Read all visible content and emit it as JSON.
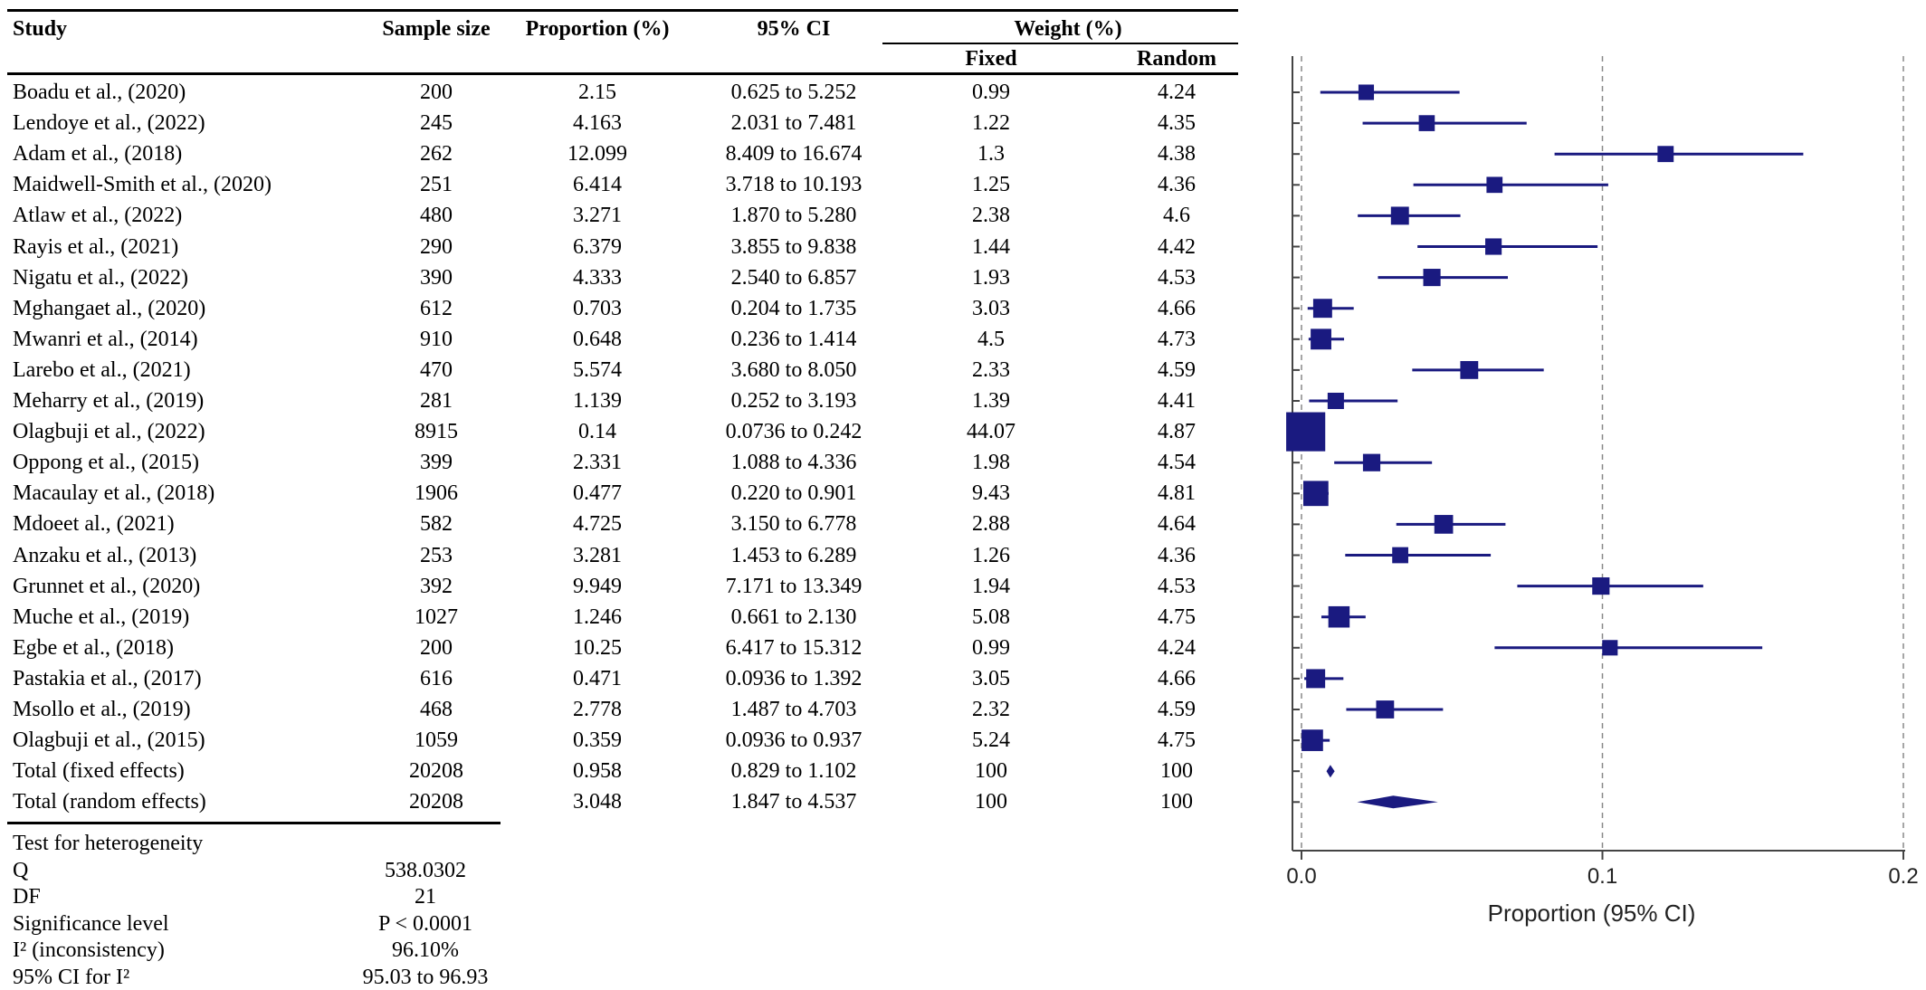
{
  "table": {
    "headers": {
      "study": "Study",
      "sample_size": "Sample size",
      "proportion": "Proportion (%)",
      "ci": "95% CI",
      "weight": "Weight (%)",
      "fixed": "Fixed",
      "random": "Random"
    },
    "rows": [
      {
        "study": "Boadu et al., (2020)",
        "n": "200",
        "p": "2.15",
        "ci": "0.625 to 5.252",
        "fixed": "0.99",
        "random": "4.24"
      },
      {
        "study": "Lendoye et al., (2022)",
        "n": "245",
        "p": "4.163",
        "ci": "2.031 to 7.481",
        "fixed": "1.22",
        "random": "4.35"
      },
      {
        "study": "Adam et al., (2018)",
        "n": "262",
        "p": "12.099",
        "ci": "8.409 to 16.674",
        "fixed": "1.3",
        "random": "4.38"
      },
      {
        "study": "Maidwell-Smith et al., (2020)",
        "n": "251",
        "p": "6.414",
        "ci": "3.718 to 10.193",
        "fixed": "1.25",
        "random": "4.36"
      },
      {
        "study": "Atlaw et al., (2022)",
        "n": "480",
        "p": "3.271",
        "ci": "1.870 to 5.280",
        "fixed": "2.38",
        "random": "4.6"
      },
      {
        "study": "Rayis et al., (2021)",
        "n": "290",
        "p": "6.379",
        "ci": "3.855 to 9.838",
        "fixed": "1.44",
        "random": "4.42"
      },
      {
        "study": "Nigatu et al., (2022)",
        "n": "390",
        "p": "4.333",
        "ci": "2.540 to 6.857",
        "fixed": "1.93",
        "random": "4.53"
      },
      {
        "study": "Mghangaet al., (2020)",
        "n": "612",
        "p": "0.703",
        "ci": "0.204 to 1.735",
        "fixed": "3.03",
        "random": "4.66"
      },
      {
        "study": "Mwanri et al., (2014)",
        "n": "910",
        "p": "0.648",
        "ci": "0.236 to 1.414",
        "fixed": "4.5",
        "random": "4.73"
      },
      {
        "study": "Larebo et al., (2021)",
        "n": "470",
        "p": "5.574",
        "ci": "3.680 to 8.050",
        "fixed": "2.33",
        "random": "4.59"
      },
      {
        "study": "Meharry et al., (2019)",
        "n": "281",
        "p": "1.139",
        "ci": "0.252 to 3.193",
        "fixed": "1.39",
        "random": "4.41"
      },
      {
        "study": "Olagbuji et al., (2022)",
        "n": "8915",
        "p": "0.14",
        "ci": "0.0736 to 0.242",
        "fixed": "44.07",
        "random": "4.87"
      },
      {
        "study": "Oppong et al., (2015)",
        "n": "399",
        "p": "2.331",
        "ci": "1.088 to 4.336",
        "fixed": "1.98",
        "random": "4.54"
      },
      {
        "study": "Macaulay et al., (2018)",
        "n": "1906",
        "p": "0.477",
        "ci": "0.220 to 0.901",
        "fixed": "9.43",
        "random": "4.81"
      },
      {
        "study": "Mdoeet al., (2021)",
        "n": "582",
        "p": "4.725",
        "ci": "3.150 to 6.778",
        "fixed": "2.88",
        "random": "4.64"
      },
      {
        "study": "Anzaku et al., (2013)",
        "n": "253",
        "p": "3.281",
        "ci": "1.453 to 6.289",
        "fixed": "1.26",
        "random": "4.36"
      },
      {
        "study": "Grunnet et al., (2020)",
        "n": "392",
        "p": "9.949",
        "ci": "7.171 to 13.349",
        "fixed": "1.94",
        "random": "4.53"
      },
      {
        "study": "Muche et al., (2019)",
        "n": "1027",
        "p": "1.246",
        "ci": "0.661 to 2.130",
        "fixed": "5.08",
        "random": "4.75"
      },
      {
        "study": "Egbe et al., (2018)",
        "n": "200",
        "p": "10.25",
        "ci": "6.417 to 15.312",
        "fixed": "0.99",
        "random": "4.24"
      },
      {
        "study": "Pastakia et al., (2017)",
        "n": "616",
        "p": "0.471",
        "ci": "0.0936 to 1.392",
        "fixed": "3.05",
        "random": "4.66"
      },
      {
        "study": "Msollo et al., (2019)",
        "n": "468",
        "p": "2.778",
        "ci": "1.487 to 4.703",
        "fixed": "2.32",
        "random": "4.59"
      },
      {
        "study": "Olagbuji et al., (2015)",
        "n": "1059",
        "p": "0.359",
        "ci": "0.0936 to 0.937",
        "fixed": "5.24",
        "random": "4.75"
      },
      {
        "study": "Total (fixed effects)",
        "n": "20208",
        "p": "0.958",
        "ci": "0.829 to 1.102",
        "fixed": "100",
        "random": "100"
      },
      {
        "study": "Total (random effects)",
        "n": "20208",
        "p": "3.048",
        "ci": "1.847 to 4.537",
        "fixed": "100",
        "random": "100"
      }
    ]
  },
  "heterogeneity": {
    "title": "Test for heterogeneity",
    "rows": [
      {
        "label": "Q",
        "value": "538.0302"
      },
      {
        "label": "DF",
        "value": "21"
      },
      {
        "label": "Significance level",
        "value": "P < 0.0001"
      },
      {
        "label": "I² (inconsistency)",
        "value": "96.10%"
      },
      {
        "label": "95% CI for I²",
        "value": "95.03 to 96.93"
      }
    ]
  },
  "chart_data": {
    "type": "forest",
    "xlabel": "Proportion (95% CI)",
    "xlim": [
      0,
      0.2
    ],
    "xticks": [
      "0.0",
      "0.1",
      "0.2"
    ],
    "reference_lines": [
      0,
      0.1,
      0.2
    ],
    "color": "#1a1a80",
    "studies": [
      {
        "est": 0.0215,
        "lo": 0.00625,
        "hi": 0.05252,
        "weight": 0.99
      },
      {
        "est": 0.04163,
        "lo": 0.02031,
        "hi": 0.07481,
        "weight": 1.22
      },
      {
        "est": 0.12099,
        "lo": 0.08409,
        "hi": 0.16674,
        "weight": 1.3
      },
      {
        "est": 0.06414,
        "lo": 0.03718,
        "hi": 0.10193,
        "weight": 1.25
      },
      {
        "est": 0.03271,
        "lo": 0.0187,
        "hi": 0.0528,
        "weight": 2.38
      },
      {
        "est": 0.06379,
        "lo": 0.03855,
        "hi": 0.09838,
        "weight": 1.44
      },
      {
        "est": 0.04333,
        "lo": 0.0254,
        "hi": 0.06857,
        "weight": 1.93
      },
      {
        "est": 0.00703,
        "lo": 0.00204,
        "hi": 0.01735,
        "weight": 3.03
      },
      {
        "est": 0.00648,
        "lo": 0.00236,
        "hi": 0.01414,
        "weight": 4.5
      },
      {
        "est": 0.05574,
        "lo": 0.0368,
        "hi": 0.0805,
        "weight": 2.33
      },
      {
        "est": 0.01139,
        "lo": 0.00252,
        "hi": 0.03193,
        "weight": 1.39
      },
      {
        "est": 0.0014,
        "lo": 0.000736,
        "hi": 0.00242,
        "weight": 44.07
      },
      {
        "est": 0.02331,
        "lo": 0.01088,
        "hi": 0.04336,
        "weight": 1.98
      },
      {
        "est": 0.00477,
        "lo": 0.0022,
        "hi": 0.00901,
        "weight": 9.43
      },
      {
        "est": 0.04725,
        "lo": 0.0315,
        "hi": 0.06778,
        "weight": 2.88
      },
      {
        "est": 0.03281,
        "lo": 0.01453,
        "hi": 0.06289,
        "weight": 1.26
      },
      {
        "est": 0.09949,
        "lo": 0.07171,
        "hi": 0.13349,
        "weight": 1.94
      },
      {
        "est": 0.01246,
        "lo": 0.00661,
        "hi": 0.0213,
        "weight": 5.08
      },
      {
        "est": 0.1025,
        "lo": 0.06417,
        "hi": 0.15312,
        "weight": 0.99
      },
      {
        "est": 0.00471,
        "lo": 0.000936,
        "hi": 0.01392,
        "weight": 3.05
      },
      {
        "est": 0.02778,
        "lo": 0.01487,
        "hi": 0.04703,
        "weight": 2.32
      },
      {
        "est": 0.00359,
        "lo": 0.000936,
        "hi": 0.00937,
        "weight": 5.24
      }
    ],
    "pooled": [
      {
        "name": "Total (fixed effects)",
        "est": 0.00958,
        "lo": 0.00829,
        "hi": 0.01102
      },
      {
        "name": "Total (random effects)",
        "est": 0.03048,
        "lo": 0.01847,
        "hi": 0.04537
      }
    ]
  }
}
